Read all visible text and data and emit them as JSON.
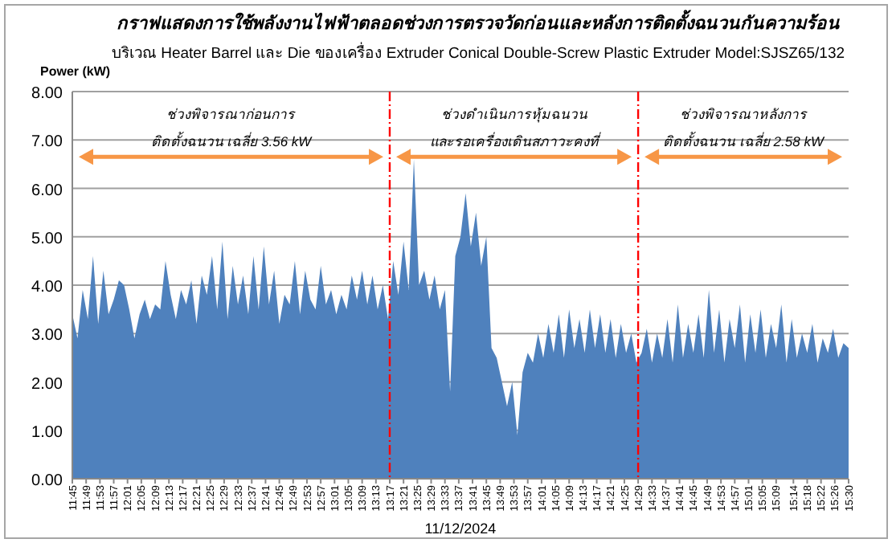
{
  "chart_data": {
    "type": "area",
    "title": "กราฟแสดงการใช้พลังงานไฟฟ้าตลอดช่วงการตรวจวัดก่อนและหลังการติดตั้งฉนวนกันความร้อน",
    "subtitle": "บริเวณ Heater Barrel และ Die ของเครื่อง Extruder Conical Double-Screw Plastic Extruder Model:SJSZ65/132",
    "ylabel": "Power (kW)",
    "xlabel": "11/12/2024",
    "annotations": [
      "ช่วงพิจารณาก่อนการ\nติดตั้งฉนวน เฉลี่ย 3.56 kW",
      "ช่วงดำเนินการหุ้มฉนวน\nและรอเครื่องเดินสภาวะคงที่",
      "ช่วงพิจารณาหลังการ\nติดตั้งฉนวน เฉลี่ย 2.58 kW"
    ],
    "series": [
      {
        "color": "#4f81bd",
        "x": [
          11.75,
          11.775,
          11.8,
          11.825,
          11.85,
          11.875,
          11.9,
          11.925,
          11.95,
          11.975,
          12.0,
          12.025,
          12.05,
          12.075,
          12.1,
          12.125,
          12.15,
          12.175,
          12.2,
          12.225,
          12.25,
          12.275,
          12.3,
          12.325,
          12.35,
          12.375,
          12.4,
          12.425,
          12.45,
          12.475,
          12.5,
          12.525,
          12.55,
          12.575,
          12.6,
          12.625,
          12.65,
          12.675,
          12.7,
          12.725,
          12.75,
          12.775,
          12.8,
          12.825,
          12.85,
          12.875,
          12.9,
          12.925,
          12.95,
          12.975,
          13.0,
          13.025,
          13.05,
          13.075,
          13.1,
          13.125,
          13.15,
          13.175,
          13.2,
          13.225,
          13.25,
          13.275,
          13.3,
          13.325,
          13.35,
          13.375,
          13.4,
          13.425,
          13.45,
          13.475,
          13.5,
          13.525,
          13.55,
          13.575,
          13.6,
          13.625,
          13.65,
          13.675,
          13.7,
          13.725,
          13.75,
          13.775,
          13.8,
          13.825,
          13.85,
          13.875,
          13.9,
          13.925,
          13.95,
          13.975,
          14.0,
          14.025,
          14.05,
          14.075,
          14.1,
          14.125,
          14.15,
          14.175,
          14.2,
          14.225,
          14.25,
          14.275,
          14.3,
          14.325,
          14.35,
          14.375,
          14.4,
          14.425,
          14.45,
          14.475,
          14.5,
          14.525,
          14.55,
          14.575,
          14.6,
          14.625,
          14.65,
          14.675,
          14.7,
          14.725,
          14.75,
          14.775,
          14.8,
          14.825,
          14.85,
          14.875,
          14.9,
          14.925,
          14.95,
          14.975,
          15.0,
          15.025,
          15.05,
          15.075,
          15.1,
          15.125,
          15.15,
          15.175,
          15.2,
          15.225,
          15.25,
          15.275,
          15.3,
          15.325,
          15.35,
          15.375,
          15.4,
          15.425,
          15.45,
          15.475,
          15.5
        ],
        "values": [
          3.4,
          2.9,
          3.9,
          3.3,
          4.6,
          3.2,
          4.3,
          3.4,
          3.7,
          4.1,
          4.0,
          3.5,
          2.9,
          3.4,
          3.7,
          3.3,
          3.6,
          3.5,
          4.5,
          3.8,
          3.3,
          3.9,
          3.6,
          4.1,
          3.2,
          4.2,
          3.8,
          4.6,
          3.5,
          4.9,
          3.3,
          4.4,
          3.6,
          4.2,
          3.4,
          4.6,
          3.5,
          4.8,
          3.6,
          4.3,
          3.2,
          3.8,
          3.6,
          4.5,
          3.4,
          4.3,
          3.7,
          3.5,
          4.4,
          3.6,
          3.9,
          3.4,
          3.8,
          3.5,
          4.2,
          3.7,
          4.3,
          3.6,
          4.2,
          3.5,
          4.0,
          3.3,
          4.5,
          3.8,
          4.9,
          3.9,
          6.6,
          4.0,
          4.3,
          3.7,
          4.2,
          3.5,
          3.9,
          1.8,
          4.6,
          5.0,
          5.9,
          4.8,
          5.5,
          4.4,
          5.0,
          2.7,
          2.5,
          2.0,
          1.5,
          2.0,
          0.9,
          2.2,
          2.6,
          2.4,
          3.0,
          2.5,
          3.2,
          2.6,
          3.4,
          2.5,
          3.5,
          2.7,
          3.3,
          2.6,
          3.5,
          2.7,
          3.4,
          2.6,
          3.3,
          2.5,
          3.2,
          2.6,
          3.0,
          2.4,
          2.6,
          3.1,
          2.4,
          3.0,
          2.5,
          3.3,
          2.4,
          3.6,
          2.5,
          3.2,
          2.6,
          3.4,
          2.5,
          3.9,
          2.6,
          3.5,
          2.4,
          3.3,
          2.7,
          3.6,
          2.4,
          3.4,
          2.6,
          3.5,
          2.5,
          3.2,
          2.7,
          3.6,
          2.4,
          3.3,
          2.5,
          3.0,
          2.6,
          3.2,
          2.4,
          2.9,
          2.6,
          3.1,
          2.5,
          2.8,
          2.7
        ]
      }
    ],
    "xlim": [
      11.75,
      15.5
    ],
    "ylim": [
      0,
      8
    ],
    "yticks": [
      {
        "value": 0,
        "label": "0.00"
      },
      {
        "value": 1,
        "label": "1.00"
      },
      {
        "value": 2,
        "label": "2.00"
      },
      {
        "value": 3,
        "label": "3.00"
      },
      {
        "value": 4,
        "label": "4.00"
      },
      {
        "value": 5,
        "label": "5.00"
      },
      {
        "value": 6,
        "label": "6.00"
      },
      {
        "value": 7,
        "label": "7.00"
      },
      {
        "value": 8,
        "label": "8.00"
      }
    ],
    "xticks": [
      {
        "value": 11.75,
        "label": "11:45"
      },
      {
        "value": 11.8167,
        "label": "11:49"
      },
      {
        "value": 11.8833,
        "label": "11:53"
      },
      {
        "value": 11.95,
        "label": "11:57"
      },
      {
        "value": 12.0167,
        "label": "12:01"
      },
      {
        "value": 12.0833,
        "label": "12:05"
      },
      {
        "value": 12.15,
        "label": "12:09"
      },
      {
        "value": 12.2167,
        "label": "12:13"
      },
      {
        "value": 12.2833,
        "label": "12:17"
      },
      {
        "value": 12.35,
        "label": "12:21"
      },
      {
        "value": 12.4167,
        "label": "12:25"
      },
      {
        "value": 12.4833,
        "label": "12:29"
      },
      {
        "value": 12.55,
        "label": "12:33"
      },
      {
        "value": 12.6167,
        "label": "12:37"
      },
      {
        "value": 12.6833,
        "label": "12:41"
      },
      {
        "value": 12.75,
        "label": "12:45"
      },
      {
        "value": 12.8167,
        "label": "12:49"
      },
      {
        "value": 12.8833,
        "label": "12:53"
      },
      {
        "value": 12.95,
        "label": "12:57"
      },
      {
        "value": 13.0167,
        "label": "13:01"
      },
      {
        "value": 13.0833,
        "label": "13:05"
      },
      {
        "value": 13.15,
        "label": "13:09"
      },
      {
        "value": 13.2167,
        "label": "13:13"
      },
      {
        "value": 13.2833,
        "label": "13:17"
      },
      {
        "value": 13.35,
        "label": "13:21"
      },
      {
        "value": 13.4167,
        "label": "13:25"
      },
      {
        "value": 13.4833,
        "label": "13:29"
      },
      {
        "value": 13.55,
        "label": "13:33"
      },
      {
        "value": 13.6167,
        "label": "13:37"
      },
      {
        "value": 13.6833,
        "label": "13:41"
      },
      {
        "value": 13.75,
        "label": "13:45"
      },
      {
        "value": 13.8167,
        "label": "13:49"
      },
      {
        "value": 13.8833,
        "label": "13:53"
      },
      {
        "value": 13.95,
        "label": "13:57"
      },
      {
        "value": 14.0167,
        "label": "14:01"
      },
      {
        "value": 14.0833,
        "label": "14:05"
      },
      {
        "value": 14.15,
        "label": "14:09"
      },
      {
        "value": 14.2167,
        "label": "14:13"
      },
      {
        "value": 14.2833,
        "label": "14:17"
      },
      {
        "value": 14.35,
        "label": "14:21"
      },
      {
        "value": 14.4167,
        "label": "14:25"
      },
      {
        "value": 14.4833,
        "label": "14:29"
      },
      {
        "value": 14.55,
        "label": "14:33"
      },
      {
        "value": 14.6167,
        "label": "14:37"
      },
      {
        "value": 14.6833,
        "label": "14:41"
      },
      {
        "value": 14.75,
        "label": "14:45"
      },
      {
        "value": 14.8167,
        "label": "14:49"
      },
      {
        "value": 14.8833,
        "label": "14:53"
      },
      {
        "value": 14.95,
        "label": "14:57"
      },
      {
        "value": 15.0167,
        "label": "15:01"
      },
      {
        "value": 15.0833,
        "label": "15:05"
      },
      {
        "value": 15.15,
        "label": "15:09"
      },
      {
        "value": 15.2333,
        "label": "15:14"
      },
      {
        "value": 15.3,
        "label": "15:18"
      },
      {
        "value": 15.3667,
        "label": "15:22"
      },
      {
        "value": 15.4333,
        "label": "15:26"
      },
      {
        "value": 15.5,
        "label": "15:30"
      }
    ],
    "grid": "y",
    "ref_lines": [
      {
        "axis": "x",
        "value": 13.2833,
        "color": "#ff0000",
        "line_style": "dashed"
      },
      {
        "axis": "x",
        "value": 14.4833,
        "color": "#ff0000",
        "line_style": "dashed"
      }
    ]
  }
}
